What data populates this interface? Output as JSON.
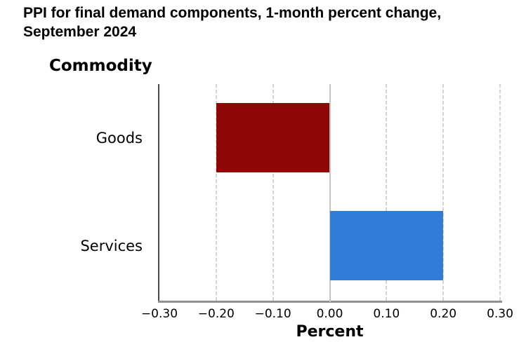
{
  "header": {
    "title_line1": "PPI for final demand components, 1-month percent change,",
    "title_line2": "September 2024"
  },
  "chart_data": {
    "type": "bar",
    "orientation": "horizontal",
    "title": "PPI for final demand components, 1-month percent change, September 2024",
    "ylabel": "Commodity",
    "xlabel": "Percent",
    "categories": [
      "Goods",
      "Services"
    ],
    "values": [
      -0.2,
      0.2
    ],
    "units": "percent",
    "bar_colors": [
      "#8e0606",
      "#307dd8"
    ],
    "xlim": [
      -0.3,
      0.3
    ],
    "xticks": [
      -0.3,
      -0.2,
      -0.1,
      0,
      0.1,
      0.2,
      0.3
    ],
    "xtick_labels": [
      "−0.30",
      "−0.20",
      "−0.10",
      "0.00",
      "0.10",
      "0.20",
      "0.30"
    ],
    "grid": {
      "vertical_dashed_at_ticks": true,
      "zero_line_solid": true
    },
    "legend": "none"
  },
  "colors": {
    "background": "#ffffff",
    "goods_bar": "#8e0606",
    "services_bar": "#307dd8",
    "gridline": "#d4d4d4",
    "zero_line": "#c4c4c4",
    "y_axis_line": "#4a4a4a",
    "x_axis_line": "#919191",
    "text": "#000000"
  }
}
